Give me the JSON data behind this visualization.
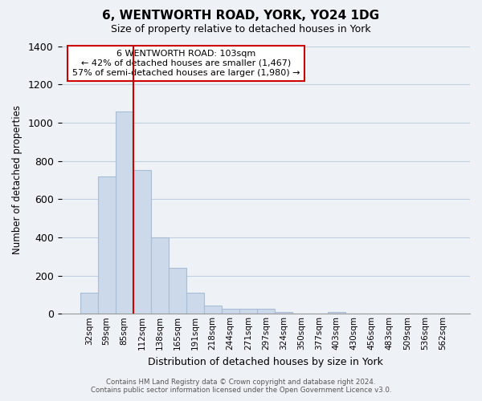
{
  "title": "6, WENTWORTH ROAD, YORK, YO24 1DG",
  "subtitle": "Size of property relative to detached houses in York",
  "xlabel": "Distribution of detached houses by size in York",
  "ylabel": "Number of detached properties",
  "bar_color": "#ccd9ea",
  "bar_edge_color": "#a8bdd4",
  "grid_color": "#c0cfe0",
  "vline_color": "#cc0000",
  "vline_x": 2.5,
  "annotation_title": "6 WENTWORTH ROAD: 103sqm",
  "annotation_line1": "← 42% of detached houses are smaller (1,467)",
  "annotation_line2": "57% of semi-detached houses are larger (1,980) →",
  "annotation_box_color": "#ffffff",
  "annotation_box_edge": "#cc0000",
  "ylim": [
    0,
    1400
  ],
  "yticks": [
    0,
    200,
    400,
    600,
    800,
    1000,
    1200,
    1400
  ],
  "bar_heights": [
    110,
    720,
    1060,
    750,
    400,
    240,
    110,
    45,
    25,
    28,
    25,
    10,
    0,
    0,
    10,
    0,
    0,
    0,
    0,
    0,
    0
  ],
  "categories": [
    "32sqm",
    "59sqm",
    "85sqm",
    "112sqm",
    "138sqm",
    "165sqm",
    "191sqm",
    "218sqm",
    "244sqm",
    "271sqm",
    "297sqm",
    "324sqm",
    "350sqm",
    "377sqm",
    "403sqm",
    "430sqm",
    "456sqm",
    "483sqm",
    "509sqm",
    "536sqm",
    "562sqm"
  ],
  "footer_line1": "Contains HM Land Registry data © Crown copyright and database right 2024.",
  "footer_line2": "Contains public sector information licensed under the Open Government Licence v3.0.",
  "background_color": "#eef2f7"
}
